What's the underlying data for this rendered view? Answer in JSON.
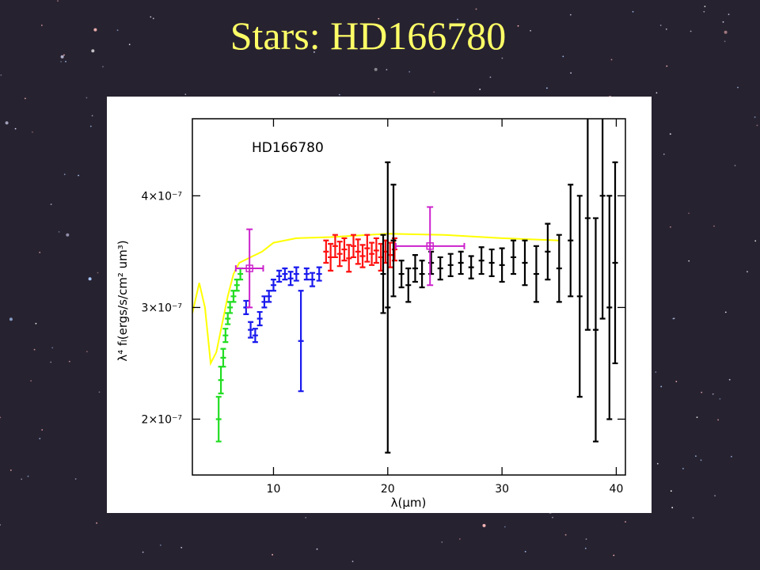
{
  "title": "Stars: HD166780",
  "chart_data": {
    "type": "errorbar",
    "annotation": "HD166780",
    "xlabel": "λ(μm)",
    "ylabel": "λ⁴ fₗ(ergs/s/cm² um³)",
    "xlim": [
      2.9,
      40.8
    ],
    "ylim": [
      1.5e-07,
      4.69e-07
    ],
    "xticks": [
      10,
      20,
      30,
      40
    ],
    "yticks": [
      {
        "value": 2e-07,
        "label": "2×10⁻⁷"
      },
      {
        "value": 3e-07,
        "label": "3×10⁻⁷"
      },
      {
        "value": 4e-07,
        "label": "4×10⁻⁷"
      }
    ],
    "series": [
      {
        "style": "line",
        "color": "#ffff00",
        "x": [
          2.9,
          3.5,
          4.0,
          4.5,
          5.0,
          5.5,
          6.0,
          6.5,
          7.0,
          8.0,
          9.0,
          10.0,
          12.0,
          15.0,
          20.0,
          25.0,
          30.0,
          35.0
        ],
        "values": [
          2.95e-07,
          3.22e-07,
          3e-07,
          2.5e-07,
          2.6e-07,
          2.85e-07,
          3.1e-07,
          3.3e-07,
          3.4e-07,
          3.45e-07,
          3.5e-07,
          3.58e-07,
          3.62e-07,
          3.63e-07,
          3.66e-07,
          3.65e-07,
          3.62e-07,
          3.6e-07
        ]
      },
      {
        "style": "errorbar",
        "color": "#22dd22",
        "x": [
          5.2,
          5.4,
          5.6,
          5.8,
          6.0,
          6.2,
          6.5,
          6.8,
          7.1
        ],
        "values": [
          2e-07,
          2.35e-07,
          2.55e-07,
          2.75e-07,
          2.9e-07,
          3e-07,
          3.1e-07,
          3.2e-07,
          3.3e-07
        ],
        "errors": [
          2e-08,
          1.2e-08,
          8e-09,
          6e-09,
          5e-09,
          5e-09,
          5e-09,
          5e-09,
          5e-09
        ]
      },
      {
        "style": "errorbar",
        "color": "#1a1aee",
        "x": [
          7.6,
          8.0,
          8.4,
          8.8,
          9.2,
          9.6,
          10.0,
          10.5,
          11.0,
          11.5,
          12.0,
          12.4,
          12.9,
          13.4,
          14.0
        ],
        "values": [
          3e-07,
          2.8e-07,
          2.75e-07,
          2.9e-07,
          3.05e-07,
          3.1e-07,
          3.2e-07,
          3.28e-07,
          3.3e-07,
          3.26e-07,
          3.3e-07,
          2.7e-07,
          3.3e-07,
          3.25e-07,
          3.3e-07
        ],
        "errors": [
          6e-09,
          7e-09,
          6e-09,
          6e-09,
          5e-09,
          5e-09,
          5e-09,
          5e-09,
          5e-09,
          6e-09,
          6e-09,
          4.5e-08,
          5e-09,
          6e-09,
          6e-09
        ]
      },
      {
        "style": "errorbar",
        "color": "#ff1010",
        "x": [
          14.6,
          15.0,
          15.4,
          15.8,
          16.2,
          16.6,
          17.0,
          17.4,
          17.8,
          18.2,
          18.6,
          19.0,
          19.4,
          19.8,
          20.2,
          20.6
        ],
        "values": [
          3.5e-07,
          3.45e-07,
          3.55e-07,
          3.48e-07,
          3.52e-07,
          3.44e-07,
          3.55e-07,
          3.5e-07,
          3.46e-07,
          3.53e-07,
          3.48e-07,
          3.51e-07,
          3.45e-07,
          3.5e-07,
          3.47e-07,
          3.52e-07
        ],
        "errors": [
          1e-08,
          1.2e-08,
          1e-08,
          1.1e-08,
          1e-08,
          1.2e-08,
          1e-08,
          1.1e-08,
          1e-08,
          1.2e-08,
          1e-08,
          1.1e-08,
          1.2e-08,
          1e-08,
          1.1e-08,
          1e-08
        ]
      },
      {
        "style": "errorbar",
        "color": "#000000",
        "x": [
          19.6,
          20.0,
          20.5,
          21.2,
          21.8,
          22.4,
          23.0,
          23.8,
          24.6,
          25.5,
          26.4,
          27.3,
          28.2,
          29.1,
          30.0,
          31.0,
          32.0,
          33.0,
          34.0,
          35.0,
          36.0,
          36.8,
          37.5,
          38.2,
          38.8,
          39.4,
          39.9
        ],
        "values": [
          3.3e-07,
          3e-07,
          3.6e-07,
          3.3e-07,
          3.2e-07,
          3.35e-07,
          3.3e-07,
          3.4e-07,
          3.35e-07,
          3.38e-07,
          3.4e-07,
          3.36e-07,
          3.42e-07,
          3.4e-07,
          3.38e-07,
          3.45e-07,
          3.4e-07,
          3.3e-07,
          3.5e-07,
          3.35e-07,
          3.6e-07,
          3.1e-07,
          3.8e-07,
          2.8e-07,
          4e-07,
          3e-07,
          3.4e-07
        ],
        "errors": [
          3.5e-08,
          1.3e-07,
          5e-08,
          1.2e-08,
          1.5e-08,
          1.2e-08,
          1.2e-08,
          1e-08,
          1e-08,
          1e-08,
          1e-08,
          1e-08,
          1.2e-08,
          1.2e-08,
          1.5e-08,
          1.5e-08,
          2e-08,
          2.5e-08,
          2.5e-08,
          3e-08,
          5e-08,
          9e-08,
          1e-07,
          1e-07,
          1.1e-07,
          1e-07,
          9e-08
        ]
      },
      {
        "style": "photometry",
        "color": "#cc22cc",
        "x": [
          7.9,
          23.7
        ],
        "values": [
          3.35e-07,
          3.55e-07
        ],
        "errors": [
          3.5e-08,
          3.5e-08
        ],
        "xerrors": [
          1.2,
          3.0
        ]
      }
    ]
  }
}
